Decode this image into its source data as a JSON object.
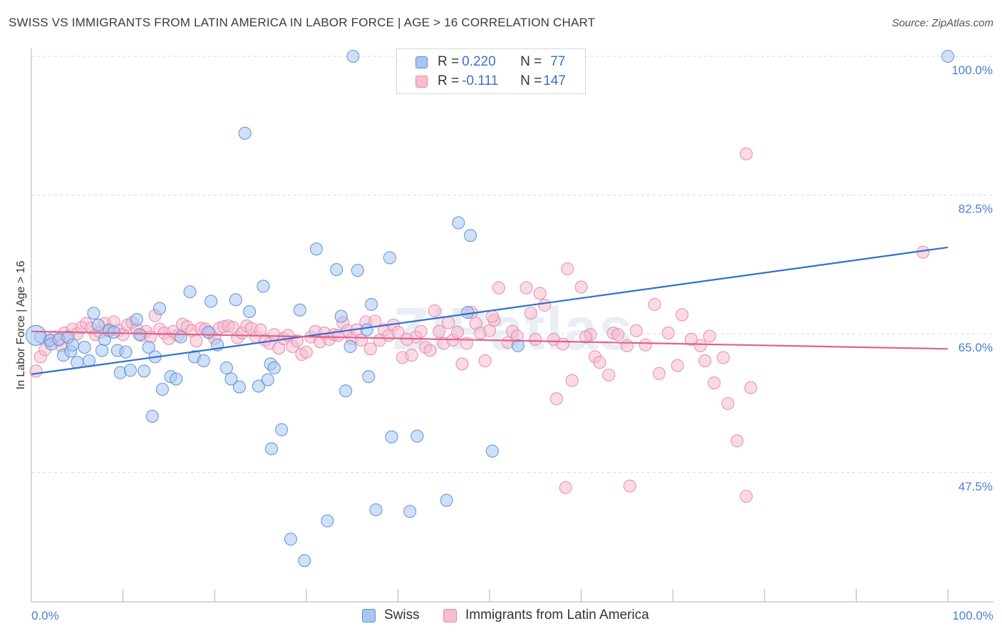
{
  "header": {
    "title": "SWISS VS IMMIGRANTS FROM LATIN AMERICA IN LABOR FORCE | AGE > 16 CORRELATION CHART",
    "source": "Source: ZipAtlas.com"
  },
  "colors": {
    "swiss_fill": "#a9c6f0",
    "swiss_stroke": "#5b8fd9",
    "swiss_line": "#2f6fd1",
    "latin_fill": "#f6bcd0",
    "latin_stroke": "#e58aa9",
    "latin_line": "#e0608f",
    "grid": "#d9d9d9",
    "axis": "#b0b0b0",
    "tick_text": "#4a7fd4"
  },
  "legend": {
    "rows": [
      {
        "r_label": "R = ",
        "r_value": "0.220",
        "n_label": "N = ",
        "n_value": "77"
      },
      {
        "r_label": "R = ",
        "r_value": "-0.111",
        "n_label": "N = ",
        "n_value": "147"
      }
    ]
  },
  "chart_data": {
    "type": "scatter",
    "ylabel": "In Labor Force | Age > 16",
    "xlim": [
      0,
      100
    ],
    "ylim": [
      31.2,
      100
    ],
    "x_tick_labels": [
      "0.0%",
      "100.0%"
    ],
    "y_ticks": [
      {
        "value": 100.0,
        "label": "100.0%"
      },
      {
        "value": 82.5,
        "label": "82.5%"
      },
      {
        "value": 65.0,
        "label": "65.0%"
      },
      {
        "value": 47.5,
        "label": "47.5%"
      }
    ],
    "watermark": "ZIPatlas",
    "grid": true,
    "series": [
      {
        "name": "Swiss",
        "trend": {
          "x": [
            0,
            100
          ],
          "y": [
            59.9,
            75.9
          ]
        },
        "points": [
          [
            1,
            64.6
          ],
          [
            2,
            64.2
          ],
          [
            2.2,
            63.7
          ],
          [
            3,
            64.3
          ],
          [
            3.5,
            62.3
          ],
          [
            4,
            64.6
          ],
          [
            4.3,
            62.8
          ],
          [
            4.5,
            63.6
          ],
          [
            5,
            61.4
          ],
          [
            5.8,
            63.3
          ],
          [
            6.3,
            61.6
          ],
          [
            6.8,
            67.6
          ],
          [
            7.3,
            66.1
          ],
          [
            7.7,
            62.9
          ],
          [
            8,
            64.3
          ],
          [
            8.5,
            65.4
          ],
          [
            9,
            65.2
          ],
          [
            9.4,
            62.9
          ],
          [
            9.7,
            60.1
          ],
          [
            10.3,
            62.7
          ],
          [
            10.8,
            60.4
          ],
          [
            11.5,
            66.8
          ],
          [
            11.8,
            64.9
          ],
          [
            12.3,
            60.3
          ],
          [
            12.8,
            63.3
          ],
          [
            13.5,
            62.1
          ],
          [
            14,
            68.2
          ],
          [
            14.3,
            58.0
          ],
          [
            13.2,
            54.6
          ],
          [
            15.2,
            59.6
          ],
          [
            15.8,
            59.3
          ],
          [
            16.3,
            64.6
          ],
          [
            17.3,
            70.3
          ],
          [
            17.8,
            62.1
          ],
          [
            18.8,
            61.6
          ],
          [
            19.3,
            65.2
          ],
          [
            19.6,
            69.1
          ],
          [
            20.3,
            63.6
          ],
          [
            21.3,
            60.7
          ],
          [
            21.8,
            59.3
          ],
          [
            22.3,
            69.3
          ],
          [
            22.7,
            58.3
          ],
          [
            23.3,
            90.3
          ],
          [
            23.8,
            67.8
          ],
          [
            24.8,
            58.4
          ],
          [
            25.8,
            59.2
          ],
          [
            25.3,
            71.0
          ],
          [
            26.1,
            61.2
          ],
          [
            26.5,
            60.7
          ],
          [
            26.2,
            50.5
          ],
          [
            27.3,
            52.9
          ],
          [
            28.3,
            39.1
          ],
          [
            29.3,
            68.0
          ],
          [
            29.8,
            36.4
          ],
          [
            31.1,
            75.7
          ],
          [
            32.3,
            41.4
          ],
          [
            33.3,
            73.1
          ],
          [
            33.8,
            67.2
          ],
          [
            34.3,
            57.8
          ],
          [
            35.1,
            100.0
          ],
          [
            35.6,
            73.0
          ],
          [
            36.8,
            59.6
          ],
          [
            37.1,
            68.7
          ],
          [
            37.6,
            42.8
          ],
          [
            39.3,
            52.0
          ],
          [
            39.1,
            74.6
          ],
          [
            42.1,
            52.1
          ],
          [
            41.3,
            42.6
          ],
          [
            45.3,
            44.0
          ],
          [
            46.6,
            79.0
          ],
          [
            47.9,
            77.4
          ],
          [
            50.3,
            50.2
          ],
          [
            53.1,
            63.5
          ],
          [
            100,
            100.0
          ],
          [
            34.8,
            63.4
          ],
          [
            36.6,
            65.5
          ],
          [
            47.6,
            67.7
          ]
        ]
      },
      {
        "name": "Immigrants from Latin America",
        "trend": {
          "x": [
            0,
            100
          ],
          "y": [
            65.3,
            63.1
          ]
        },
        "points": [
          [
            0.5,
            60.3
          ],
          [
            1,
            62.1
          ],
          [
            1.5,
            63.0
          ],
          [
            2,
            64.1
          ],
          [
            2.5,
            64.6
          ],
          [
            3,
            64.2
          ],
          [
            3.3,
            63.5
          ],
          [
            3.6,
            65.1
          ],
          [
            4,
            64.5
          ],
          [
            4.5,
            65.6
          ],
          [
            5,
            65.0
          ],
          [
            5.5,
            65.8
          ],
          [
            6,
            66.3
          ],
          [
            6.5,
            65.7
          ],
          [
            7,
            64.9
          ],
          [
            7.5,
            65.2
          ],
          [
            8,
            66.3
          ],
          [
            8.5,
            65.5
          ],
          [
            9,
            66.5
          ],
          [
            9.5,
            65.4
          ],
          [
            10,
            64.9
          ],
          [
            10.5,
            66.1
          ],
          [
            11,
            66.4
          ],
          [
            11.5,
            65.6
          ],
          [
            12,
            64.8
          ],
          [
            12.5,
            65.3
          ],
          [
            13,
            64.6
          ],
          [
            13.5,
            67.3
          ],
          [
            14,
            65.6
          ],
          [
            14.5,
            65.1
          ],
          [
            15,
            64.4
          ],
          [
            15.5,
            65.3
          ],
          [
            16,
            64.8
          ],
          [
            16.5,
            66.2
          ],
          [
            17,
            65.9
          ],
          [
            17.5,
            65.4
          ],
          [
            18,
            64.1
          ],
          [
            18.5,
            65.7
          ],
          [
            19,
            65.6
          ],
          [
            19.5,
            65.1
          ],
          [
            20,
            64.4
          ],
          [
            20.5,
            65.7
          ],
          [
            21,
            65.9
          ],
          [
            21.5,
            66.0
          ],
          [
            22,
            65.8
          ],
          [
            22.5,
            64.5
          ],
          [
            23,
            65.1
          ],
          [
            23.5,
            66.0
          ],
          [
            24,
            65.7
          ],
          [
            24.5,
            64.6
          ],
          [
            25,
            65.5
          ],
          [
            25.5,
            64.2
          ],
          [
            26,
            63.8
          ],
          [
            26.5,
            64.9
          ],
          [
            27,
            63.2
          ],
          [
            27.5,
            64.4
          ],
          [
            28,
            64.8
          ],
          [
            28.5,
            63.4
          ],
          [
            29,
            64.1
          ],
          [
            29.5,
            62.4
          ],
          [
            30,
            62.7
          ],
          [
            30.5,
            64.6
          ],
          [
            31,
            65.3
          ],
          [
            31.5,
            64.0
          ],
          [
            32,
            65.1
          ],
          [
            32.5,
            64.3
          ],
          [
            33,
            64.9
          ],
          [
            33.5,
            64.8
          ],
          [
            34,
            66.4
          ],
          [
            34.5,
            65.4
          ],
          [
            35,
            64.4
          ],
          [
            35.5,
            65.5
          ],
          [
            36,
            64.2
          ],
          [
            36.5,
            66.5
          ],
          [
            37,
            63.1
          ],
          [
            37.5,
            66.6
          ],
          [
            38,
            64.2
          ],
          [
            38.5,
            65.5
          ],
          [
            39,
            64.8
          ],
          [
            39.5,
            66.1
          ],
          [
            40,
            65.2
          ],
          [
            40.5,
            62.0
          ],
          [
            41,
            64.3
          ],
          [
            41.5,
            62.3
          ],
          [
            42,
            64.6
          ],
          [
            42.5,
            65.3
          ],
          [
            43,
            63.3
          ],
          [
            43.5,
            62.9
          ],
          [
            44,
            67.9
          ],
          [
            44.5,
            65.3
          ],
          [
            45,
            63.8
          ],
          [
            45.5,
            66.4
          ],
          [
            46,
            64.2
          ],
          [
            46.5,
            65.2
          ],
          [
            47,
            61.2
          ],
          [
            47.5,
            63.8
          ],
          [
            48,
            67.7
          ],
          [
            48.5,
            66.3
          ],
          [
            49,
            65.1
          ],
          [
            49.5,
            61.6
          ],
          [
            50,
            65.4
          ],
          [
            50.5,
            66.7
          ],
          [
            51,
            70.8
          ],
          [
            52,
            63.9
          ],
          [
            52.5,
            65.3
          ],
          [
            53,
            64.7
          ],
          [
            54,
            70.8
          ],
          [
            54.5,
            67.6
          ],
          [
            55,
            64.3
          ],
          [
            55.5,
            70.1
          ],
          [
            56,
            68.6
          ],
          [
            57,
            64.3
          ],
          [
            58,
            63.7
          ],
          [
            58.5,
            73.2
          ],
          [
            59,
            59.1
          ],
          [
            60,
            70.9
          ],
          [
            61,
            64.9
          ],
          [
            61.5,
            62.1
          ],
          [
            62,
            61.4
          ],
          [
            63,
            59.8
          ],
          [
            63.5,
            65.1
          ],
          [
            64,
            64.9
          ],
          [
            65,
            63.5
          ],
          [
            66,
            65.4
          ],
          [
            67,
            63.6
          ],
          [
            68,
            68.7
          ],
          [
            68.5,
            60.0
          ],
          [
            69.5,
            65.1
          ],
          [
            70.5,
            61.0
          ],
          [
            71,
            67.4
          ],
          [
            73,
            63.5
          ],
          [
            73.5,
            61.6
          ],
          [
            74,
            64.7
          ],
          [
            74.5,
            58.8
          ],
          [
            76,
            56.2
          ],
          [
            77,
            51.5
          ],
          [
            78,
            87.7
          ],
          [
            78,
            44.5
          ],
          [
            78.5,
            58.2
          ],
          [
            97.3,
            75.3
          ],
          [
            72,
            64.3
          ],
          [
            75.5,
            62.0
          ],
          [
            50.3,
            67.2
          ],
          [
            57.3,
            56.8
          ],
          [
            58.3,
            45.6
          ],
          [
            65.3,
            45.8
          ],
          [
            60.5,
            64.6
          ]
        ]
      }
    ]
  },
  "bottom_legend": {
    "items": [
      {
        "label": "Swiss"
      },
      {
        "label": "Immigrants from Latin America"
      }
    ]
  }
}
